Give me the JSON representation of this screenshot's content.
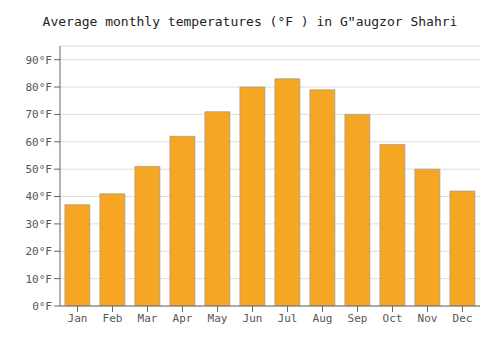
{
  "chart_data": {
    "type": "bar",
    "title": "Average monthly temperatures (°F ) in Gʺaugzor Shahri",
    "categories": [
      "Jan",
      "Feb",
      "Mar",
      "Apr",
      "May",
      "Jun",
      "Jul",
      "Aug",
      "Sep",
      "Oct",
      "Nov",
      "Dec"
    ],
    "values": [
      37,
      41,
      51,
      62,
      71,
      80,
      83,
      79,
      70,
      59,
      50,
      42
    ],
    "color": "#F5A623",
    "ylim": [
      0,
      95
    ],
    "yticks": [
      {
        "value": 0,
        "label": "0°F"
      },
      {
        "value": 10,
        "label": "10°F"
      },
      {
        "value": 20,
        "label": "20°F"
      },
      {
        "value": 30,
        "label": "30°F"
      },
      {
        "value": 40,
        "label": "40°F"
      },
      {
        "value": 50,
        "label": "50°F"
      },
      {
        "value": 60,
        "label": "60°F"
      },
      {
        "value": 70,
        "label": "70°F"
      },
      {
        "value": 80,
        "label": "80°F"
      },
      {
        "value": 90,
        "label": "90°F"
      }
    ],
    "grid": true
  }
}
